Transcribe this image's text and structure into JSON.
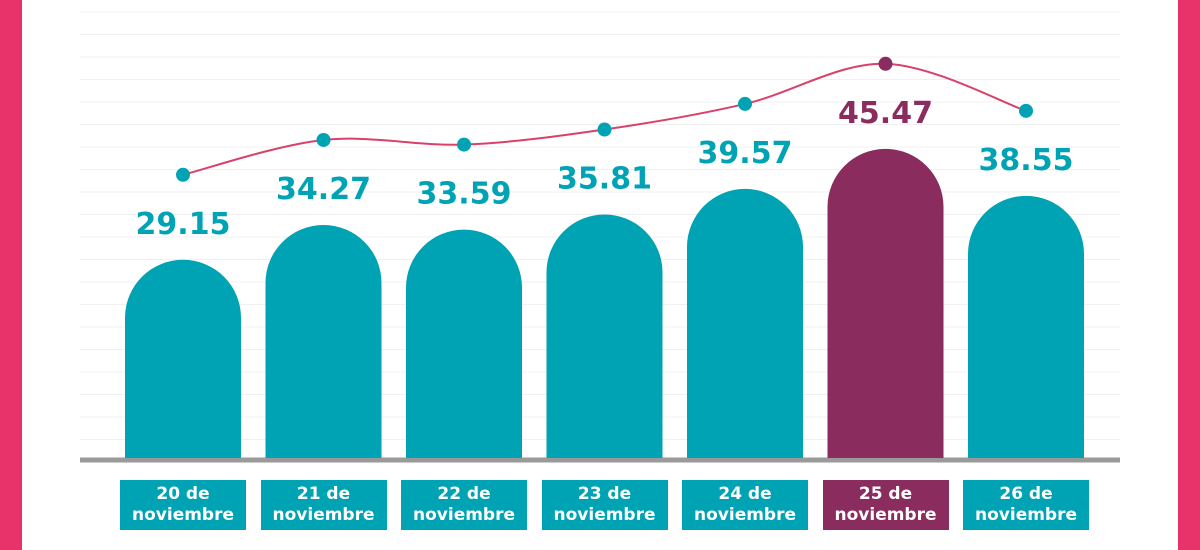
{
  "chart_data": {
    "type": "bar",
    "categories": [
      "20 de noviembre",
      "21 de noviembre",
      "22 de noviembre",
      "23 de noviembre",
      "24 de noviembre",
      "25 de noviembre",
      "26 de noviembre"
    ],
    "values": [
      29.15,
      34.27,
      33.59,
      35.81,
      39.57,
      45.47,
      38.55
    ],
    "color": "#00a3b4",
    "highlight": 5,
    "highlight_color": "#8a2d5e",
    "line_color": "#d9416b"
  }
}
